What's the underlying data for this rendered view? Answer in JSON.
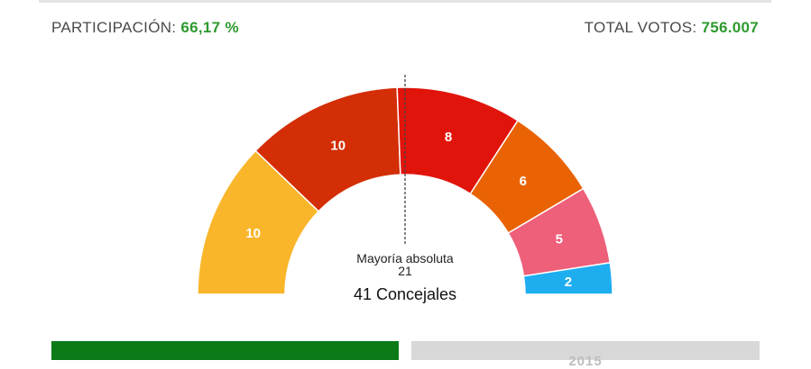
{
  "header": {
    "participation_label": "PARTICIPACIÓN:",
    "participation_value": "66,17 %",
    "total_votes_label": "TOTAL VOTOS:",
    "total_votes_value": "756.007"
  },
  "colors": {
    "accent_green": "#2e9a2e",
    "tab_active": "#0b7a17",
    "tab_inactive": "#d8d8d8"
  },
  "chart_data": {
    "type": "pie",
    "variant": "parliament-semicircle",
    "total_seats": 41,
    "values": [
      10,
      10,
      8,
      6,
      5,
      2
    ],
    "colors": [
      "#f9b62b",
      "#d32e05",
      "#e0140b",
      "#e96305",
      "#ee5f7a",
      "#1eaef0"
    ],
    "majority_label": "Mayoría absoluta",
    "majority_value": "21",
    "total_label": "41 Concejales"
  },
  "tabs": [
    {
      "label": ""
    },
    {
      "label": "2015"
    }
  ]
}
